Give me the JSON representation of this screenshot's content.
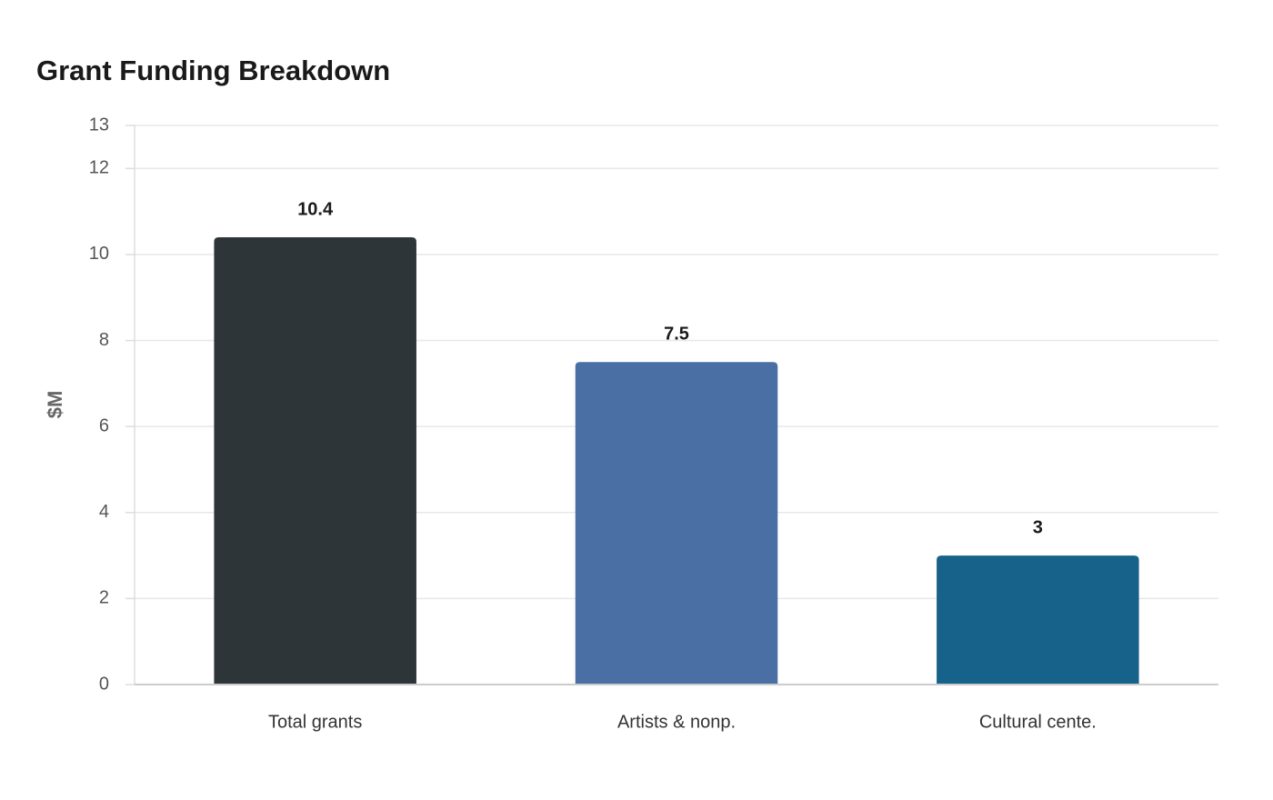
{
  "chart_data": {
    "type": "bar",
    "title": "Grant Funding Breakdown",
    "y_label": "$M",
    "categories": [
      "Total grants",
      "Artists & nonp.",
      "Cultural cente."
    ],
    "values": [
      10.4,
      7.5,
      3
    ],
    "colors": [
      "#2e3538",
      "#4a6fa5",
      "#17628a"
    ],
    "ylim": [
      0,
      13
    ],
    "yticks": [
      0,
      2,
      4,
      6,
      8,
      10,
      12,
      13
    ],
    "grid": true,
    "value_labels_shown": true
  }
}
